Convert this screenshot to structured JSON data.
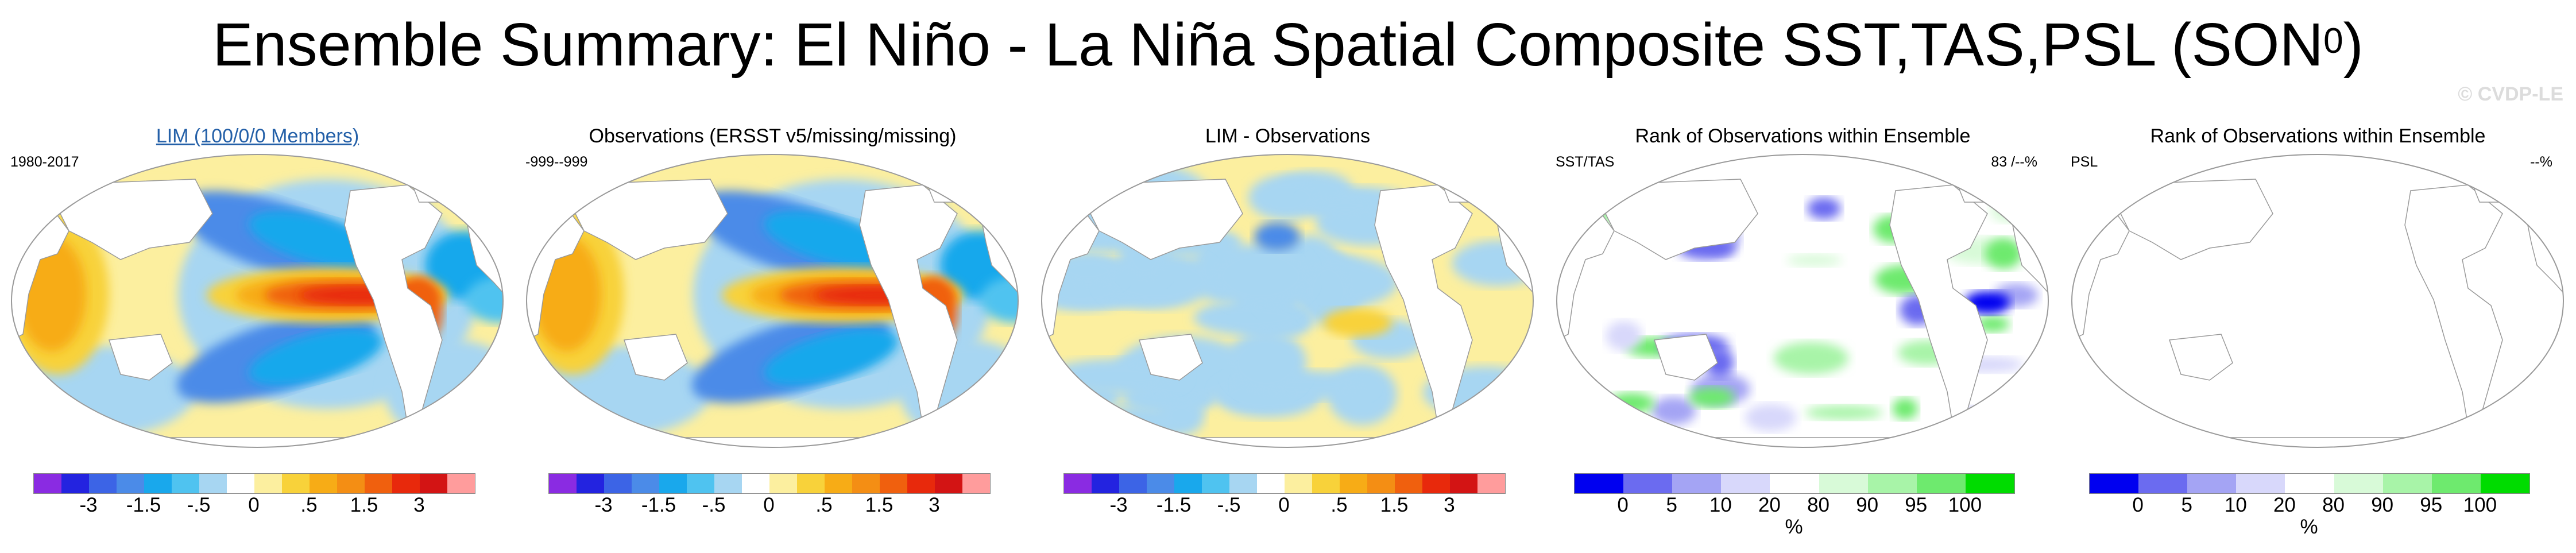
{
  "figure": {
    "title": "Ensemble Summary: El Niño - La Niña Spatial Composite SST,TAS,PSL (SON",
    "title_sup": "0",
    "title_close": ")",
    "watermark": "© CVDP-LE"
  },
  "panels": [
    {
      "title": "LIM (100/0/0 Members)",
      "title_color": "#2460a8",
      "left": "1980-2017",
      "right": "",
      "colorbar": "anomaly",
      "content": "el-nino-composite"
    },
    {
      "title": "Observations (ERSST v5/missing/missing)",
      "title_color": "#000000",
      "left": "-999--999",
      "right": "",
      "colorbar": "anomaly",
      "content": "el-nino-composite"
    },
    {
      "title": "LIM - Observations",
      "title_color": "#000000",
      "left": "",
      "right": "",
      "colorbar": "anomaly",
      "content": "difference"
    },
    {
      "title": "Rank of Observations within Ensemble",
      "title_color": "#000000",
      "left": "SST/TAS",
      "right": "83 /--%",
      "colorbar": "rank",
      "content": "rank-sst"
    },
    {
      "title": "Rank of Observations within Ensemble",
      "title_color": "#000000",
      "left": "PSL",
      "right": "--%",
      "colorbar": "rank",
      "content": "empty"
    }
  ],
  "chart_data": {
    "type": "heatmap",
    "projection": "robinson-global",
    "anomaly_colorbar": {
      "colors": [
        "#8a2be2",
        "#2323e0",
        "#3c64e6",
        "#4b8be8",
        "#19a8ec",
        "#4fc3f0",
        "#a7d6f2",
        "#ffffff",
        "#fcef9f",
        "#f8d23a",
        "#f7ac16",
        "#f48e14",
        "#f0600e",
        "#e8290c",
        "#d31414",
        "#ff9c9c"
      ],
      "tick_labels": [
        "-3",
        "-1.5",
        "-.5",
        "0",
        ".5",
        "1.5",
        "3"
      ]
    },
    "rank_colorbar": {
      "colors": [
        "#0000f0",
        "#6b6bf0",
        "#a4a4f4",
        "#d8d8fb",
        "#ffffff",
        "#d8fad8",
        "#a8f4a8",
        "#6eea6e",
        "#00dc00"
      ],
      "tick_labels": [
        "0",
        "5",
        "10",
        "20",
        "80",
        "90",
        "95",
        "100"
      ],
      "unit": "%"
    }
  }
}
